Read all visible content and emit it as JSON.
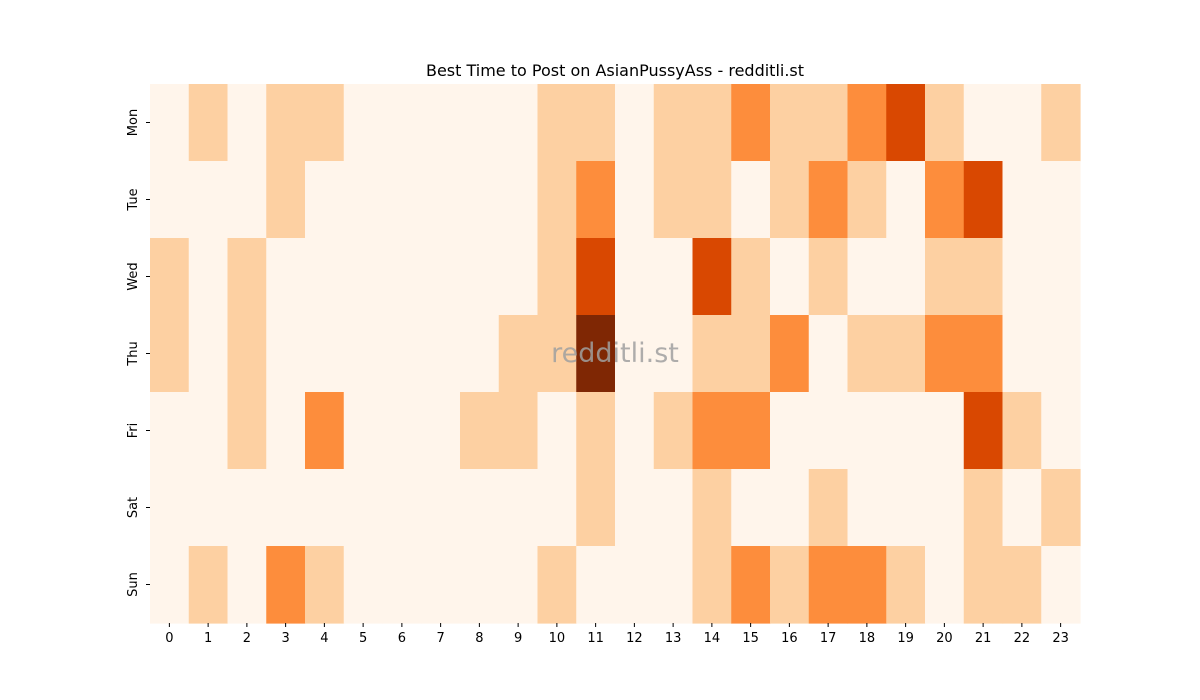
{
  "chart_data": {
    "type": "heatmap",
    "title": "Best Time to Post on AsianPussyAss - redditli.st",
    "watermark": "redditli.st",
    "xlabel": "",
    "ylabel": "",
    "x": [
      "0",
      "1",
      "2",
      "3",
      "4",
      "5",
      "6",
      "7",
      "8",
      "9",
      "10",
      "11",
      "12",
      "13",
      "14",
      "15",
      "16",
      "17",
      "18",
      "19",
      "20",
      "21",
      "22",
      "23"
    ],
    "y": [
      "Mon",
      "Tue",
      "Wed",
      "Thu",
      "Fri",
      "Sat",
      "Sun"
    ],
    "colormap": "Oranges",
    "color_levels": [
      "#fff5eb",
      "#fdd0a2",
      "#fd8d3c",
      "#d94801",
      "#7f2704"
    ],
    "values": [
      [
        0,
        1,
        0,
        1,
        1,
        0,
        0,
        0,
        0,
        0,
        1,
        1,
        0,
        1,
        1,
        2,
        1,
        1,
        2,
        3,
        1,
        0,
        0,
        1
      ],
      [
        0,
        0,
        0,
        1,
        0,
        0,
        0,
        0,
        0,
        0,
        1,
        2,
        0,
        1,
        1,
        0,
        1,
        2,
        1,
        0,
        2,
        3,
        0,
        0
      ],
      [
        1,
        0,
        1,
        0,
        0,
        0,
        0,
        0,
        0,
        0,
        1,
        3,
        0,
        0,
        3,
        1,
        0,
        1,
        0,
        0,
        1,
        1,
        0,
        0
      ],
      [
        1,
        0,
        1,
        0,
        0,
        0,
        0,
        0,
        0,
        1,
        1,
        4,
        0,
        0,
        1,
        1,
        2,
        0,
        1,
        1,
        2,
        2,
        0,
        0
      ],
      [
        0,
        0,
        1,
        0,
        2,
        0,
        0,
        0,
        1,
        1,
        0,
        1,
        0,
        1,
        2,
        2,
        0,
        0,
        0,
        0,
        0,
        3,
        1,
        0
      ],
      [
        0,
        0,
        0,
        0,
        0,
        0,
        0,
        0,
        0,
        0,
        0,
        1,
        0,
        0,
        1,
        0,
        0,
        1,
        0,
        0,
        0,
        1,
        0,
        1
      ],
      [
        0,
        1,
        0,
        2,
        1,
        0,
        0,
        0,
        0,
        0,
        1,
        0,
        0,
        0,
        1,
        2,
        1,
        2,
        2,
        1,
        0,
        1,
        1,
        0
      ]
    ]
  }
}
